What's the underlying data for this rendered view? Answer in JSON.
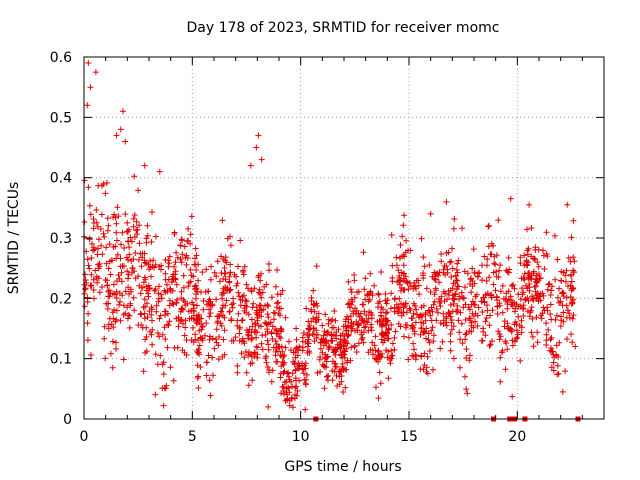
{
  "chart_data": {
    "type": "scatter",
    "title": "Day 178 of 2023, SRMTID for receiver momc",
    "xlabel": "GPS time / hours",
    "ylabel": "SRMTID / TECUs",
    "xlim": [
      0,
      24
    ],
    "ylim": [
      0,
      0.6
    ],
    "x_ticks": [
      0,
      5,
      10,
      15,
      20
    ],
    "y_ticks": [
      0,
      0.1,
      0.2,
      0.3,
      0.4,
      0.5,
      0.6
    ],
    "x_tick_labels": [
      "0",
      "5",
      "10",
      "15",
      "20"
    ],
    "y_tick_labels": [
      "0",
      "0.1",
      "0.2",
      "0.3",
      "0.4",
      "0.5",
      "0.6"
    ],
    "grid": true,
    "marker": "plus",
    "color": "#e00000",
    "point_count": 1900,
    "trend_profile": [
      {
        "x": 0.0,
        "mean": 0.26,
        "spread": 0.09
      },
      {
        "x": 1.0,
        "mean": 0.25,
        "spread": 0.09
      },
      {
        "x": 2.0,
        "mean": 0.24,
        "spread": 0.08
      },
      {
        "x": 3.0,
        "mean": 0.21,
        "spread": 0.08
      },
      {
        "x": 4.0,
        "mean": 0.2,
        "spread": 0.07
      },
      {
        "x": 5.0,
        "mean": 0.19,
        "spread": 0.07
      },
      {
        "x": 6.0,
        "mean": 0.18,
        "spread": 0.06
      },
      {
        "x": 7.0,
        "mean": 0.18,
        "spread": 0.06
      },
      {
        "x": 8.0,
        "mean": 0.17,
        "spread": 0.06
      },
      {
        "x": 8.7,
        "mean": 0.12,
        "spread": 0.05
      },
      {
        "x": 9.5,
        "mean": 0.1,
        "spread": 0.04
      },
      {
        "x": 10.5,
        "mean": 0.11,
        "spread": 0.04
      },
      {
        "x": 11.5,
        "mean": 0.13,
        "spread": 0.04
      },
      {
        "x": 12.5,
        "mean": 0.14,
        "spread": 0.04
      },
      {
        "x": 13.5,
        "mean": 0.16,
        "spread": 0.05
      },
      {
        "x": 14.5,
        "mean": 0.18,
        "spread": 0.05
      },
      {
        "x": 15.5,
        "mean": 0.19,
        "spread": 0.06
      },
      {
        "x": 16.5,
        "mean": 0.19,
        "spread": 0.06
      },
      {
        "x": 17.5,
        "mean": 0.19,
        "spread": 0.06
      },
      {
        "x": 18.5,
        "mean": 0.18,
        "spread": 0.06
      },
      {
        "x": 19.5,
        "mean": 0.2,
        "spread": 0.06
      },
      {
        "x": 20.5,
        "mean": 0.2,
        "spread": 0.06
      },
      {
        "x": 21.5,
        "mean": 0.19,
        "spread": 0.06
      },
      {
        "x": 22.7,
        "mean": 0.2,
        "spread": 0.07
      }
    ],
    "data_gaps_hours": [
      [
        8.55,
        8.62
      ],
      [
        9.98,
        10.02
      ],
      [
        20.05,
        20.1
      ],
      [
        22.7,
        24
      ]
    ],
    "highlight_points": [
      {
        "x": 0.2,
        "y": 0.59
      },
      {
        "x": 0.55,
        "y": 0.575
      },
      {
        "x": 0.3,
        "y": 0.55
      },
      {
        "x": 0.15,
        "y": 0.52
      },
      {
        "x": 1.8,
        "y": 0.51
      },
      {
        "x": 1.7,
        "y": 0.48
      },
      {
        "x": 1.5,
        "y": 0.47
      },
      {
        "x": 1.9,
        "y": 0.46
      },
      {
        "x": 8.05,
        "y": 0.47
      },
      {
        "x": 7.95,
        "y": 0.45
      },
      {
        "x": 8.2,
        "y": 0.43
      },
      {
        "x": 7.7,
        "y": 0.42
      },
      {
        "x": 3.5,
        "y": 0.41
      },
      {
        "x": 16.0,
        "y": 0.34
      },
      {
        "x": 19.7,
        "y": 0.365
      },
      {
        "x": 14.2,
        "y": 0.305
      },
      {
        "x": 22.3,
        "y": 0.355
      },
      {
        "x": 8.5,
        "y": 0.02
      },
      {
        "x": 9.3,
        "y": 0.03
      },
      {
        "x": 22.1,
        "y": 0.045
      }
    ],
    "zero_markers": [
      10.7,
      18.9,
      19.65,
      19.72,
      19.8,
      19.88,
      20.35,
      22.8
    ]
  }
}
